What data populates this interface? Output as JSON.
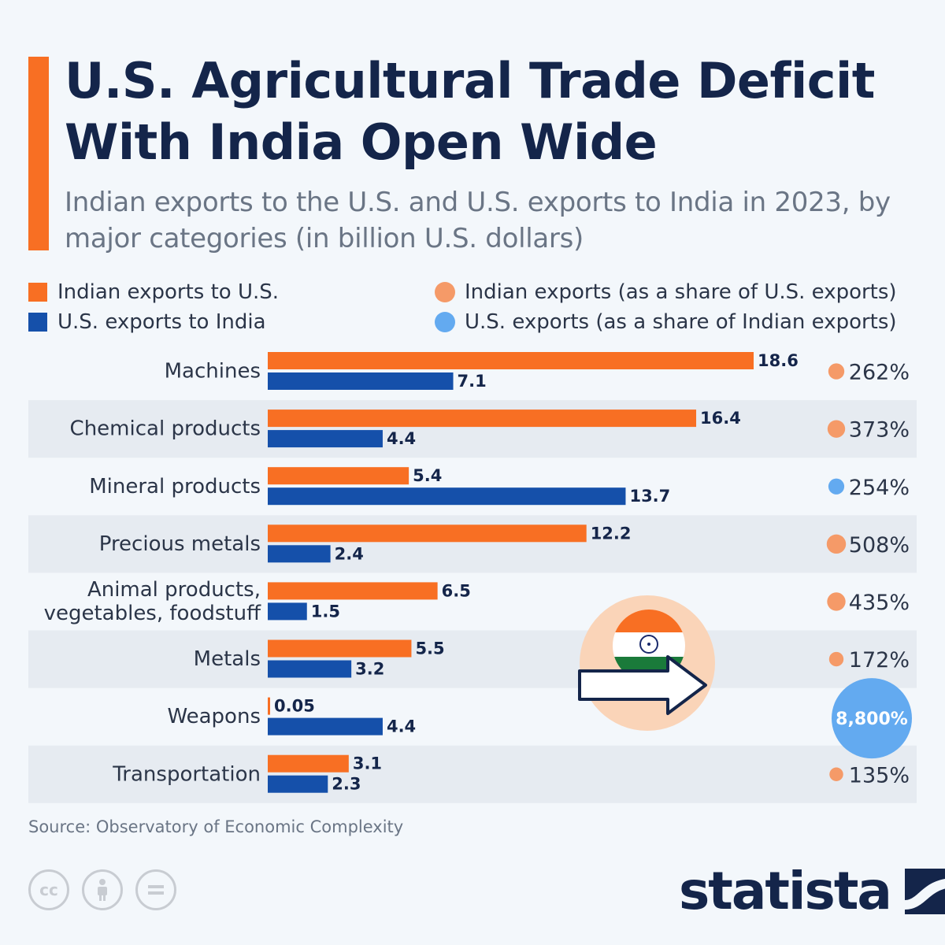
{
  "title": "U.S. Agricultural Trade Deficit With India Open Wide",
  "subtitle": "Indian exports to the U.S. and U.S. exports to India in 2023, by major categories (in billion U.S. dollars)",
  "legend": {
    "indian_exports": "Indian exports to U.S.",
    "us_exports": "U.S. exports to India",
    "indian_share": "Indian exports (as a share of U.S. exports)",
    "us_share": "U.S. exports (as a share of Indian exports)"
  },
  "colors": {
    "indian": "#f86f23",
    "us": "#1550aa",
    "indian_dot": "#f59a68",
    "us_dot": "#63aaf0",
    "row_band": "#e6ebf1"
  },
  "chart_data": {
    "type": "bar",
    "orientation": "horizontal",
    "categories": [
      "Machines",
      "Chemical products",
      "Mineral products",
      "Precious metals",
      "Animal products,\nvegetables, foodstuff",
      "Metals",
      "Weapons",
      "Transportation"
    ],
    "series": [
      {
        "name": "Indian exports to U.S.",
        "values": [
          18.6,
          16.4,
          5.4,
          12.2,
          6.5,
          5.5,
          0.05,
          3.1
        ],
        "labels": [
          "18.6",
          "16.4",
          "5.4",
          "12.2",
          "6.5",
          "5.5",
          "0.05",
          "3.1"
        ]
      },
      {
        "name": "U.S. exports to India",
        "values": [
          7.1,
          4.4,
          13.7,
          2.4,
          1.5,
          3.2,
          4.4,
          2.3
        ],
        "labels": [
          "7.1",
          "4.4",
          "13.7",
          "2.4",
          "1.5",
          "3.2",
          "4.4",
          "2.3"
        ]
      }
    ],
    "shares": [
      {
        "label": "262%",
        "value": 262,
        "series": "indian"
      },
      {
        "label": "373%",
        "value": 373,
        "series": "indian"
      },
      {
        "label": "254%",
        "value": 254,
        "series": "us"
      },
      {
        "label": "508%",
        "value": 508,
        "series": "indian"
      },
      {
        "label": "435%",
        "value": 435,
        "series": "indian"
      },
      {
        "label": "172%",
        "value": 172,
        "series": "indian"
      },
      {
        "label": "8,800%",
        "value": 8800,
        "series": "us"
      },
      {
        "label": "135%",
        "value": 135,
        "series": "indian"
      }
    ],
    "xlim": [
      0,
      18.6
    ]
  },
  "source": "Source: Observatory of Economic Complexity",
  "brand": "statista"
}
